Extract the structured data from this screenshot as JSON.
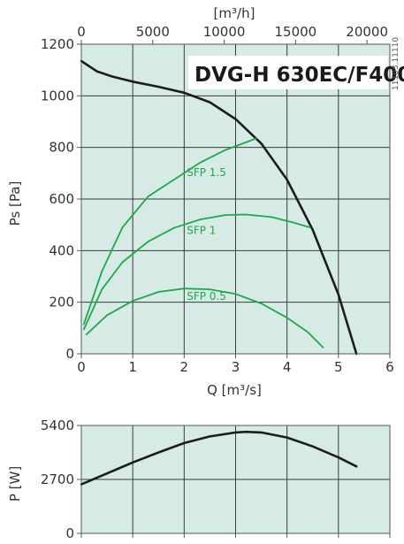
{
  "chart_data": [
    {
      "type": "line",
      "title": "DVG-H 630EC/F400",
      "side_code": "11103.11110",
      "xlabel": "Q [m³/s]",
      "ylabel": "Ps [Pa]",
      "x2label": "[m³/h]",
      "xlim": [
        0,
        6
      ],
      "ylim": [
        0,
        1200
      ],
      "x2lim": [
        0,
        21600
      ],
      "x_ticks": [
        "0",
        "1",
        "2",
        "3",
        "4",
        "5",
        "6"
      ],
      "y_ticks": [
        "0",
        "200",
        "400",
        "600",
        "800",
        "1000",
        "1200"
      ],
      "x2_ticks": [
        {
          "value": 0,
          "label": "0"
        },
        {
          "value": 5000,
          "label": "5000"
        },
        {
          "value": 10000,
          "label": "10000"
        },
        {
          "value": 15000,
          "label": "15000"
        },
        {
          "value": 20000,
          "label": "20000"
        }
      ],
      "grid": true,
      "background": "#d7ebe6",
      "series": [
        {
          "name": "",
          "color": "#1c1c1c",
          "points": [
            [
              0,
              1135
            ],
            [
              0.3,
              1095
            ],
            [
              0.6,
              1075
            ],
            [
              1.0,
              1055
            ],
            [
              1.5,
              1035
            ],
            [
              2.0,
              1012
            ],
            [
              2.5,
              975
            ],
            [
              3.0,
              910
            ],
            [
              3.5,
              815
            ],
            [
              4.0,
              675
            ],
            [
              4.5,
              480
            ],
            [
              5.0,
              230
            ],
            [
              5.35,
              0
            ]
          ]
        },
        {
          "name": "SFP 1.5",
          "color": "#1ea84a",
          "points": [
            [
              0.05,
              115
            ],
            [
              0.4,
              320
            ],
            [
              0.8,
              490
            ],
            [
              1.3,
              610
            ],
            [
              1.8,
              675
            ],
            [
              2.3,
              740
            ],
            [
              2.8,
              790
            ],
            [
              3.4,
              835
            ]
          ]
        },
        {
          "name": "SFP 1",
          "color": "#1ea84a",
          "points": [
            [
              0.05,
              95
            ],
            [
              0.4,
              250
            ],
            [
              0.8,
              355
            ],
            [
              1.3,
              435
            ],
            [
              1.8,
              488
            ],
            [
              2.3,
              520
            ],
            [
              2.8,
              538
            ],
            [
              3.2,
              540
            ],
            [
              3.7,
              530
            ],
            [
              4.1,
              510
            ],
            [
              4.45,
              490
            ]
          ]
        },
        {
          "name": "SFP 0.5",
          "color": "#1ea84a",
          "points": [
            [
              0.1,
              75
            ],
            [
              0.5,
              150
            ],
            [
              1.0,
              205
            ],
            [
              1.5,
              240
            ],
            [
              2.0,
              253
            ],
            [
              2.5,
              250
            ],
            [
              3.0,
              232
            ],
            [
              3.5,
              195
            ],
            [
              4.0,
              140
            ],
            [
              4.4,
              85
            ],
            [
              4.7,
              25
            ]
          ]
        }
      ],
      "series_labels": [
        {
          "text": "SFP 1.5",
          "x": 2.05,
          "y": 690
        },
        {
          "text": "SFP 1",
          "x": 2.05,
          "y": 465
        },
        {
          "text": "SFP 0.5",
          "x": 2.05,
          "y": 210
        }
      ]
    },
    {
      "type": "line",
      "xlabel": "",
      "ylabel": "P [W]",
      "xlim": [
        0,
        6
      ],
      "ylim": [
        0,
        5400
      ],
      "y_ticks": [
        "0",
        "2700",
        "5400"
      ],
      "grid": true,
      "background": "#d7ebe6",
      "series": [
        {
          "name": "",
          "color": "#1c1c1c",
          "points": [
            [
              0,
              2450
            ],
            [
              0.5,
              3000
            ],
            [
              1.0,
              3550
            ],
            [
              1.5,
              4050
            ],
            [
              2.0,
              4520
            ],
            [
              2.5,
              4850
            ],
            [
              3.0,
              5050
            ],
            [
              3.2,
              5080
            ],
            [
              3.5,
              5050
            ],
            [
              4.0,
              4800
            ],
            [
              4.5,
              4350
            ],
            [
              5.0,
              3800
            ],
            [
              5.35,
              3350
            ]
          ]
        }
      ]
    }
  ]
}
